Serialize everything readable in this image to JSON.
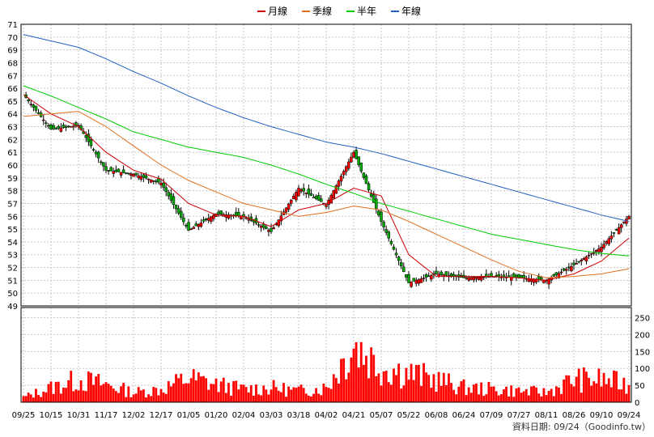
{
  "chart_data": {
    "type": "candlestick",
    "legend_placement": "top-center",
    "grid": true,
    "legend": [
      {
        "label": "月線",
        "color": "#cc0000"
      },
      {
        "label": "季線",
        "color": "#e07020"
      },
      {
        "label": "半年",
        "color": "#00cc00"
      },
      {
        "label": "年線",
        "color": "#2060c0"
      }
    ],
    "colors": {
      "up": "#ff0000",
      "down": "#00aa00",
      "volume": "#ff0000",
      "grid": "#c8c8c8"
    },
    "price_axis": {
      "ylim": [
        49,
        71
      ],
      "ticks": [
        49,
        50,
        51,
        52,
        53,
        54,
        55,
        56,
        57,
        58,
        59,
        60,
        61,
        62,
        63,
        64,
        65,
        66,
        67,
        68,
        69,
        70,
        71
      ]
    },
    "volume_axis": {
      "ylim": [
        0,
        280
      ],
      "ticks": [
        0,
        50,
        100,
        150,
        200,
        250
      ]
    },
    "x_ticks": [
      "09/25",
      "10/15",
      "10/31",
      "11/17",
      "12/02",
      "12/17",
      "01/05",
      "01/20",
      "02/04",
      "03/03",
      "03/18",
      "04/02",
      "04/21",
      "05/07",
      "05/22",
      "06/08",
      "06/24",
      "07/09",
      "07/27",
      "08/11",
      "08/26",
      "09/10",
      "09/24"
    ],
    "source_text": "資料日期: 09/24（Goodinfo.tw）",
    "price_close_points": [
      [
        "09/25",
        65.5
      ],
      [
        "10/15",
        62.8
      ],
      [
        "10/31",
        63.1
      ],
      [
        "11/17",
        59.6
      ],
      [
        "12/02",
        59.3
      ],
      [
        "12/17",
        58.6
      ],
      [
        "01/05",
        54.9
      ],
      [
        "01/20",
        56.2
      ],
      [
        "02/04",
        56.0
      ],
      [
        "03/03",
        54.8
      ],
      [
        "03/18",
        58.2
      ],
      [
        "04/02",
        56.9
      ],
      [
        "04/21",
        61.0
      ],
      [
        "05/07",
        55.6
      ],
      [
        "05/22",
        50.8
      ],
      [
        "06/08",
        51.5
      ],
      [
        "06/24",
        51.2
      ],
      [
        "07/09",
        51.3
      ],
      [
        "07/27",
        51.2
      ],
      [
        "08/11",
        51.0
      ],
      [
        "08/26",
        52.2
      ],
      [
        "09/10",
        53.6
      ],
      [
        "09/24",
        56.0
      ]
    ],
    "ma_month": [
      [
        "09/25",
        65.5
      ],
      [
        "10/15",
        64.0
      ],
      [
        "10/31",
        63.0
      ],
      [
        "11/17",
        61.0
      ],
      [
        "12/02",
        59.6
      ],
      [
        "12/17",
        58.9
      ],
      [
        "01/05",
        57.0
      ],
      [
        "01/20",
        56.1
      ],
      [
        "02/04",
        56.0
      ],
      [
        "03/03",
        55.2
      ],
      [
        "03/18",
        56.5
      ],
      [
        "04/02",
        57.0
      ],
      [
        "04/21",
        58.2
      ],
      [
        "05/07",
        57.6
      ],
      [
        "05/22",
        53.0
      ],
      [
        "06/08",
        51.3
      ],
      [
        "06/24",
        51.3
      ],
      [
        "07/09",
        51.3
      ],
      [
        "07/27",
        51.2
      ],
      [
        "08/11",
        51.0
      ],
      [
        "08/26",
        51.5
      ],
      [
        "09/10",
        52.5
      ],
      [
        "09/24",
        54.3
      ]
    ],
    "ma_quarter": [
      [
        "09/25",
        63.8
      ],
      [
        "10/15",
        64.0
      ],
      [
        "10/31",
        64.2
      ],
      [
        "11/17",
        63.0
      ],
      [
        "12/02",
        61.5
      ],
      [
        "12/17",
        60.0
      ],
      [
        "01/05",
        58.8
      ],
      [
        "01/20",
        57.9
      ],
      [
        "02/04",
        57.0
      ],
      [
        "03/03",
        56.5
      ],
      [
        "03/18",
        56.0
      ],
      [
        "04/02",
        56.3
      ],
      [
        "04/21",
        56.8
      ],
      [
        "05/07",
        56.5
      ],
      [
        "05/22",
        55.6
      ],
      [
        "06/08",
        54.6
      ],
      [
        "06/24",
        53.6
      ],
      [
        "07/09",
        52.6
      ],
      [
        "07/27",
        51.7
      ],
      [
        "08/11",
        51.2
      ],
      [
        "08/26",
        51.3
      ],
      [
        "09/10",
        51.5
      ],
      [
        "09/24",
        51.9
      ]
    ],
    "ma_half": [
      [
        "09/25",
        66.2
      ],
      [
        "10/15",
        65.4
      ],
      [
        "10/31",
        64.5
      ],
      [
        "11/17",
        63.6
      ],
      [
        "12/02",
        62.6
      ],
      [
        "12/17",
        62.0
      ],
      [
        "01/05",
        61.4
      ],
      [
        "01/20",
        61.0
      ],
      [
        "02/04",
        60.6
      ],
      [
        "03/03",
        60.0
      ],
      [
        "03/18",
        59.3
      ],
      [
        "04/02",
        58.5
      ],
      [
        "04/21",
        57.8
      ],
      [
        "05/07",
        57.0
      ],
      [
        "05/22",
        56.4
      ],
      [
        "06/08",
        55.8
      ],
      [
        "06/24",
        55.2
      ],
      [
        "07/09",
        54.6
      ],
      [
        "07/27",
        54.2
      ],
      [
        "08/11",
        53.8
      ],
      [
        "08/26",
        53.4
      ],
      [
        "09/10",
        53.1
      ],
      [
        "09/24",
        52.9
      ]
    ],
    "ma_year": [
      [
        "09/25",
        70.2
      ],
      [
        "10/15",
        69.7
      ],
      [
        "10/31",
        69.2
      ],
      [
        "11/17",
        68.3
      ],
      [
        "12/02",
        67.3
      ],
      [
        "12/17",
        66.4
      ],
      [
        "01/05",
        65.4
      ],
      [
        "01/20",
        64.5
      ],
      [
        "02/04",
        63.7
      ],
      [
        "03/03",
        63.0
      ],
      [
        "03/18",
        62.4
      ],
      [
        "04/02",
        61.8
      ],
      [
        "04/21",
        61.4
      ],
      [
        "05/07",
        60.9
      ],
      [
        "05/22",
        60.3
      ],
      [
        "06/08",
        59.7
      ],
      [
        "06/24",
        59.1
      ],
      [
        "07/09",
        58.5
      ],
      [
        "07/27",
        57.9
      ],
      [
        "08/11",
        57.3
      ],
      [
        "08/26",
        56.7
      ],
      [
        "09/10",
        56.1
      ],
      [
        "09/24",
        55.6
      ]
    ],
    "volume_points": [
      [
        "09/25",
        15
      ],
      [
        "10/15",
        45
      ],
      [
        "10/31",
        70
      ],
      [
        "11/17",
        55
      ],
      [
        "12/02",
        30
      ],
      [
        "12/17",
        40
      ],
      [
        "01/05",
        75
      ],
      [
        "01/20",
        55
      ],
      [
        "02/04",
        40
      ],
      [
        "03/03",
        45
      ],
      [
        "03/18",
        35
      ],
      [
        "04/02",
        45
      ],
      [
        "04/21",
        180
      ],
      [
        "05/07",
        110
      ],
      [
        "05/22",
        90
      ],
      [
        "06/08",
        70
      ],
      [
        "06/24",
        45
      ],
      [
        "07/09",
        40
      ],
      [
        "07/27",
        35
      ],
      [
        "08/11",
        30
      ],
      [
        "08/26",
        70
      ],
      [
        "09/10",
        70
      ],
      [
        "09/24",
        55
      ]
    ]
  }
}
